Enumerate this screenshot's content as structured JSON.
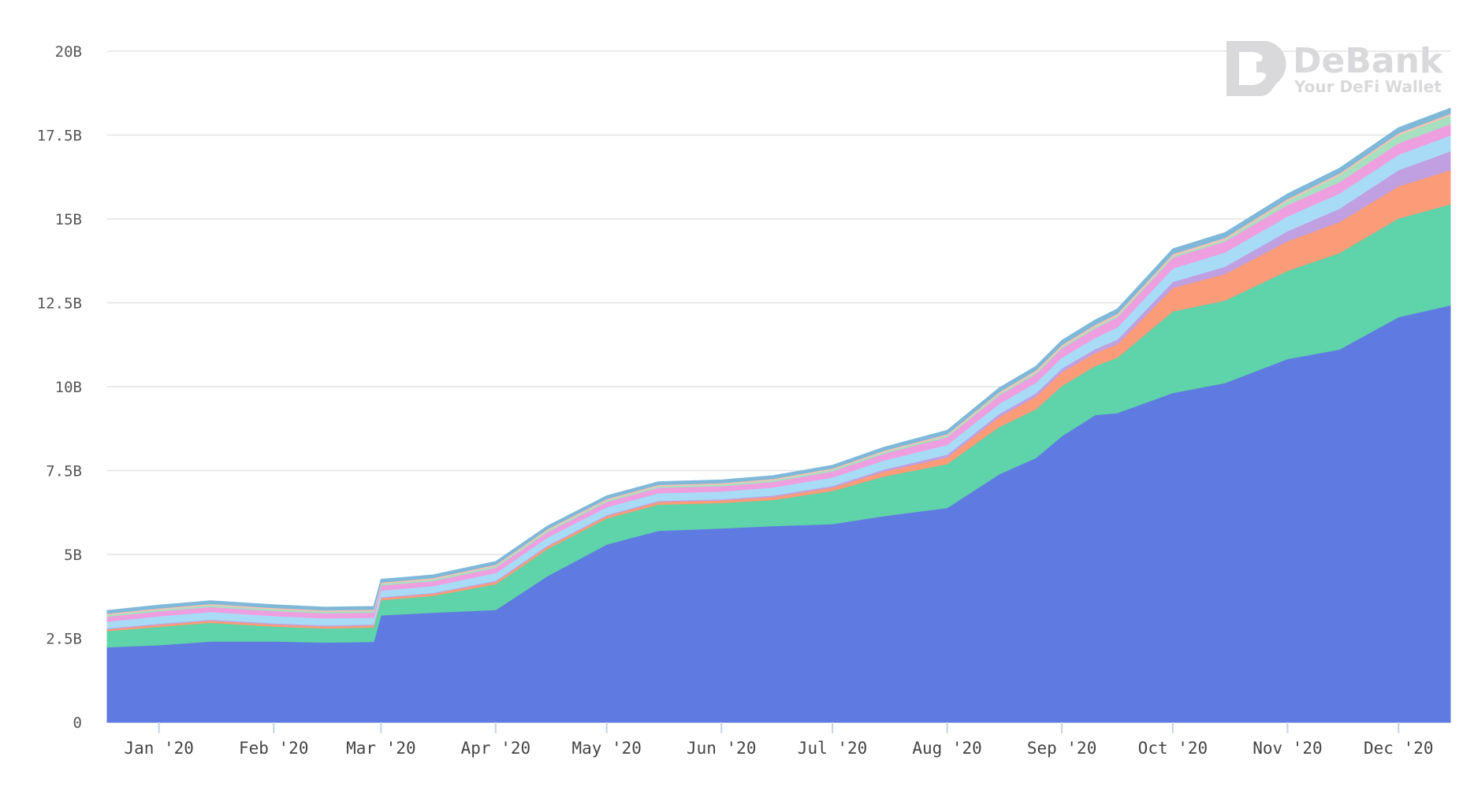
{
  "brand": {
    "name": "DeBank",
    "tagline": "Your DeFi Wallet",
    "logo_icon": "debank-logo-icon",
    "color": "#d9d9dc"
  },
  "chart_data": {
    "type": "area",
    "stacked": true,
    "title": "",
    "xlabel": "",
    "ylabel": "",
    "ylim": [
      0,
      20000000000
    ],
    "y_ticks": [
      "0",
      "2.5B",
      "5B",
      "7.5B",
      "10B",
      "12.5B",
      "15B",
      "17.5B",
      "20B"
    ],
    "y_tick_values": [
      0,
      2500000000,
      5000000000,
      7500000000,
      10000000000,
      12500000000,
      15000000000,
      17500000000,
      20000000000
    ],
    "x_range": [
      "2019-12-18",
      "2020-12-15"
    ],
    "x_ticks": [
      {
        "label": "Jan '20",
        "date": "2020-01-01"
      },
      {
        "label": "Feb '20",
        "date": "2020-02-01"
      },
      {
        "label": "Mar '20",
        "date": "2020-03-01"
      },
      {
        "label": "Apr '20",
        "date": "2020-04-01"
      },
      {
        "label": "May '20",
        "date": "2020-05-01"
      },
      {
        "label": "Jun '20",
        "date": "2020-06-01"
      },
      {
        "label": "Jul '20",
        "date": "2020-07-01"
      },
      {
        "label": "Aug '20",
        "date": "2020-08-01"
      },
      {
        "label": "Sep '20",
        "date": "2020-09-01"
      },
      {
        "label": "Oct '20",
        "date": "2020-10-01"
      },
      {
        "label": "Nov '20",
        "date": "2020-11-01"
      },
      {
        "label": "Dec '20",
        "date": "2020-12-01"
      }
    ],
    "grid": true,
    "legend": "none",
    "x": [
      "2019-12-18",
      "2020-01-01",
      "2020-01-15",
      "2020-02-01",
      "2020-02-15",
      "2020-02-28",
      "2020-03-01",
      "2020-03-15",
      "2020-04-01",
      "2020-04-15",
      "2020-05-01",
      "2020-05-15",
      "2020-06-01",
      "2020-06-15",
      "2020-07-01",
      "2020-07-15",
      "2020-08-01",
      "2020-08-15",
      "2020-08-25",
      "2020-09-01",
      "2020-09-10",
      "2020-09-16",
      "2020-10-01",
      "2020-10-15",
      "2020-11-01",
      "2020-11-15",
      "2020-12-01",
      "2020-12-15"
    ],
    "series": [
      {
        "color": "#5f7ae0",
        "values": [
          2240,
          2300,
          2410,
          2410,
          2380,
          2400,
          3190,
          3270,
          3350,
          4360,
          5300,
          5710,
          5780,
          5850,
          5910,
          6150,
          6390,
          7390,
          7880,
          8530,
          9160,
          9220,
          9820,
          10110,
          10830,
          11110,
          12080,
          12430
        ]
      },
      {
        "color": "#5fd3a9",
        "values": [
          480,
          550,
          560,
          450,
          420,
          430,
          450,
          500,
          770,
          810,
          780,
          780,
          760,
          780,
          990,
          1180,
          1310,
          1410,
          1450,
          1500,
          1460,
          1650,
          2430,
          2460,
          2630,
          2880,
          2940,
          3010
        ]
      },
      {
        "color": "#fb9b78",
        "values": [
          50,
          60,
          60,
          60,
          60,
          60,
          60,
          60,
          70,
          70,
          70,
          80,
          80,
          90,
          100,
          150,
          200,
          300,
          380,
          410,
          390,
          400,
          700,
          790,
          880,
          920,
          960,
          1020
        ]
      },
      {
        "color": "#c0a0e0",
        "values": [
          30,
          30,
          30,
          30,
          30,
          30,
          30,
          30,
          30,
          30,
          30,
          30,
          30,
          40,
          50,
          60,
          80,
          90,
          100,
          110,
          120,
          140,
          180,
          220,
          300,
          400,
          480,
          560
        ]
      },
      {
        "color": "#a8dcf6",
        "values": [
          200,
          220,
          230,
          220,
          210,
          200,
          200,
          200,
          230,
          240,
          230,
          230,
          230,
          240,
          250,
          270,
          290,
          300,
          310,
          320,
          330,
          360,
          400,
          420,
          440,
          450,
          460,
          470
        ]
      },
      {
        "color": "#ee9fe0",
        "values": [
          150,
          150,
          150,
          150,
          150,
          150,
          150,
          150,
          160,
          160,
          160,
          160,
          160,
          170,
          180,
          200,
          230,
          250,
          260,
          270,
          280,
          300,
          320,
          330,
          340,
          340,
          340,
          340
        ]
      },
      {
        "color": "#a7e0c0",
        "values": [
          50,
          50,
          50,
          50,
          50,
          50,
          50,
          50,
          50,
          50,
          50,
          50,
          50,
          50,
          50,
          50,
          50,
          50,
          50,
          50,
          50,
          50,
          50,
          50,
          120,
          200,
          240,
          250
        ]
      },
      {
        "color": "#f5c3b1",
        "values": [
          40,
          40,
          40,
          40,
          40,
          40,
          40,
          40,
          40,
          40,
          40,
          40,
          40,
          40,
          40,
          40,
          40,
          50,
          60,
          60,
          60,
          60,
          60,
          60,
          60,
          60,
          60,
          60
        ]
      },
      {
        "color": "#7fb8d8",
        "values": [
          90,
          90,
          90,
          90,
          90,
          90,
          90,
          90,
          90,
          90,
          90,
          90,
          90,
          90,
          90,
          100,
          110,
          120,
          120,
          130,
          140,
          140,
          150,
          150,
          150,
          150,
          160,
          160
        ]
      }
    ],
    "value_unit_multiplier": 1000000
  }
}
